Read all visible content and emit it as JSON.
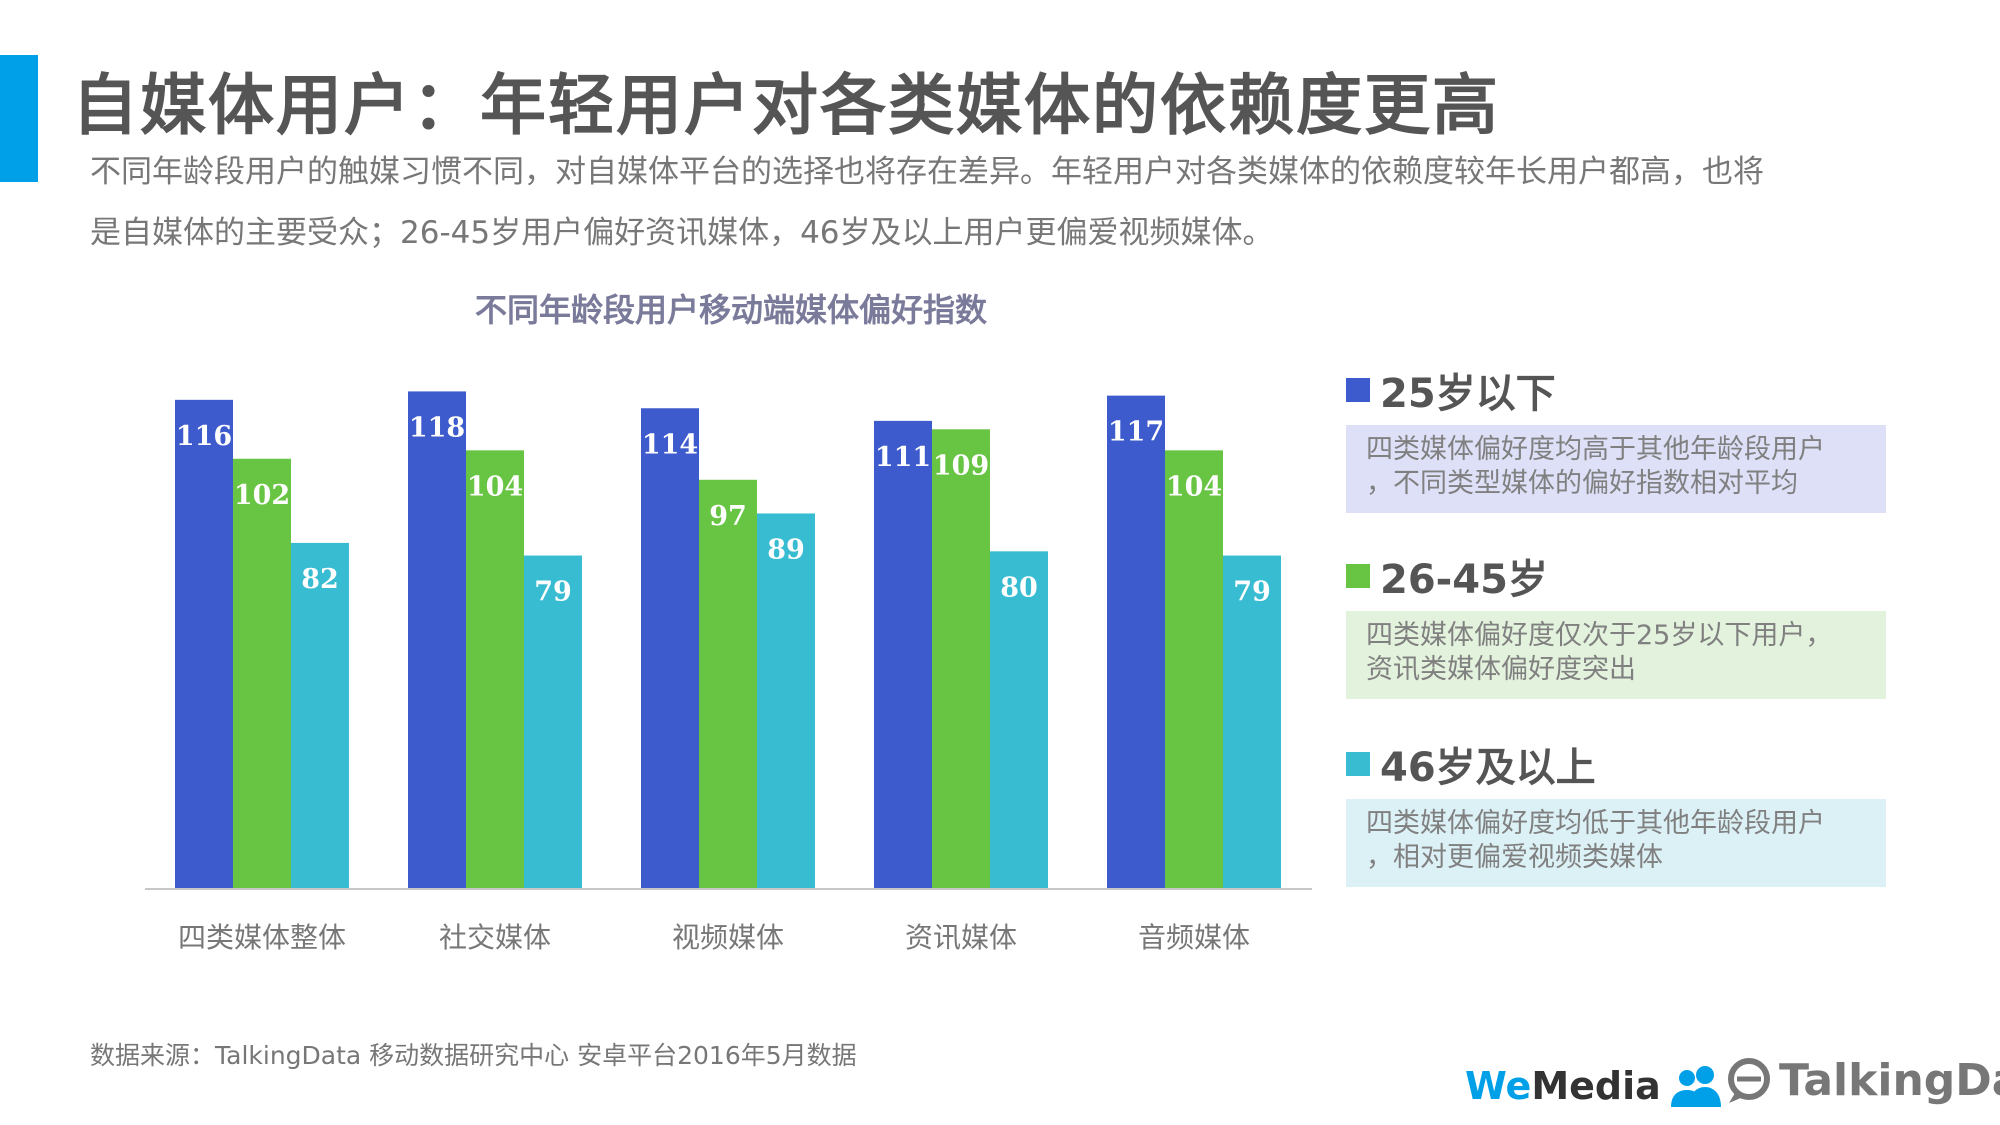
{
  "header": {
    "title": "自媒体用户：年轻用户对各类媒体的依赖度更高",
    "description_line1": "不同年龄段用户的触媒习惯不同，对自媒体平台的选择也将存在差异。年轻用户对各类媒体的依赖度较年长用户都高，也将",
    "description_line2": "是自媒体的主要受众；26-45岁用户偏好资讯媒体，46岁及以上用户更偏爱视频媒体。"
  },
  "chart_data": {
    "type": "bar",
    "title": "不同年龄段用户移动端媒体偏好指数",
    "categories": [
      "四类媒体整体",
      "社交媒体",
      "视频媒体",
      "资讯媒体",
      "音频媒体"
    ],
    "series": [
      {
        "name": "25岁以下",
        "color": "#3d5bcc",
        "values": [
          116,
          118,
          114,
          111,
          117
        ]
      },
      {
        "name": "26-45岁",
        "color": "#68c443",
        "values": [
          102,
          104,
          97,
          109,
          104
        ]
      },
      {
        "name": "46岁及以上",
        "color": "#38bcd1",
        "values": [
          82,
          79,
          89,
          80,
          79
        ]
      }
    ],
    "ylim": [
      0,
      120
    ],
    "grid": false,
    "legend_placement": "right"
  },
  "legend": [
    {
      "label": "25岁以下",
      "color": "#3d5bcc",
      "box_color": "#dde0f7",
      "note_line1": "四类媒体偏好度均高于其他年龄段用户",
      "note_line2": "，不同类型媒体的偏好指数相对平均"
    },
    {
      "label": "26-45岁",
      "color": "#68c443",
      "box_color": "#e3f2dc",
      "note_line1": "四类媒体偏好度仅次于25岁以下用户，",
      "note_line2": "资讯类媒体偏好度突出"
    },
    {
      "label": "46岁及以上",
      "color": "#38bcd1",
      "box_color": "#dcf1f6",
      "note_line1": "四类媒体偏好度均低于其他年龄段用户",
      "note_line2": "，相对更偏爱视频类媒体"
    }
  ],
  "footer": {
    "source": "数据来源：TalkingData 移动数据研究中心 安卓平台2016年5月数据",
    "logo_wemedia_we": "We",
    "logo_wemedia_media": "Media",
    "logo_talkingdata": "TalkingData",
    "logo_wemedia_icon": "people-icon",
    "logo_talkingdata_icon": "chat-bubble-icon"
  }
}
